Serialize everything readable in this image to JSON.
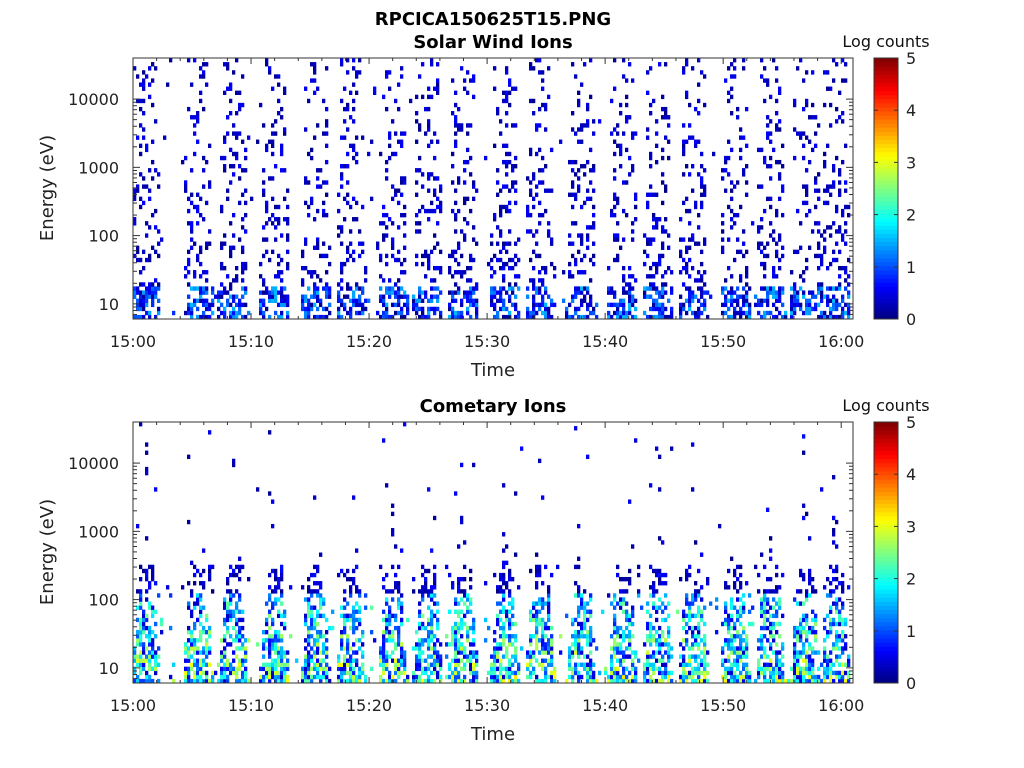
{
  "figure": {
    "title": "RPCICA150625T15.PNG"
  },
  "chart_data": [
    {
      "type": "heatmap",
      "title": "Solar Wind Ions",
      "xlabel": "Time",
      "ylabel": "Energy (eV)",
      "x_range": [
        "15:00",
        "16:01"
      ],
      "x_ticks": [
        "15:00",
        "15:10",
        "15:20",
        "15:30",
        "15:40",
        "15:50",
        "16:00"
      ],
      "y_scale": "log",
      "y_range": [
        6,
        40000
      ],
      "y_ticks": [
        10,
        100,
        1000,
        10000
      ],
      "y_tick_labels": [
        "10",
        "100",
        "1000",
        "10000"
      ],
      "colorbar": {
        "label": "Log counts",
        "range": [
          0,
          5
        ],
        "ticks": [
          "0",
          "1",
          "2",
          "3",
          "4",
          "5"
        ],
        "colormap": "jet"
      },
      "sweep_center_minutes": [
        1.1,
        5.5,
        8.5,
        12,
        15.5,
        18.5,
        22,
        25,
        28,
        31.5,
        34.5,
        38,
        41.5,
        44.5,
        47.5,
        51,
        54,
        57,
        59.5
      ],
      "description_note": "",
      "dominant_log_counts": [
        0,
        1.5
      ]
    },
    {
      "type": "heatmap",
      "title": "Cometary Ions",
      "xlabel": "Time",
      "ylabel": "Energy (eV)",
      "x_range": [
        "15:00",
        "16:01"
      ],
      "x_ticks": [
        "15:00",
        "15:10",
        "15:20",
        "15:30",
        "15:40",
        "15:50",
        "16:00"
      ],
      "y_scale": "log",
      "y_range": [
        6,
        40000
      ],
      "y_ticks": [
        10,
        100,
        1000,
        10000
      ],
      "y_tick_labels": [
        "10",
        "100",
        "1000",
        "10000"
      ],
      "colorbar": {
        "label": "Log counts",
        "range": [
          0,
          5
        ],
        "ticks": [
          "0",
          "1",
          "2",
          "3",
          "4",
          "5"
        ],
        "colormap": "jet"
      },
      "sweep_center_minutes": [
        1.1,
        5.5,
        8.5,
        12,
        15.5,
        18.5,
        22,
        25,
        28,
        31.5,
        34.5,
        38,
        41.5,
        44.5,
        47.5,
        51,
        54,
        57,
        59.5
      ],
      "dominant_log_counts": [
        0,
        3
      ]
    }
  ]
}
